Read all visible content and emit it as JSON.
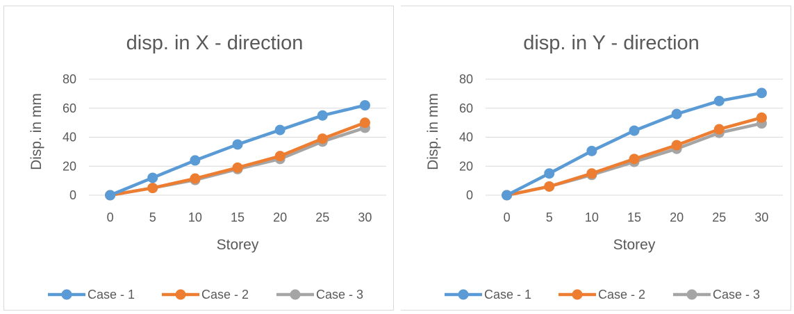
{
  "chart_data": [
    {
      "type": "line",
      "title": "disp. in X - direction",
      "xlabel": "Storey",
      "ylabel": "Disp. in mm",
      "x": [
        0,
        5,
        10,
        15,
        20,
        25,
        30
      ],
      "x_ticks": [
        "0",
        "5",
        "10",
        "15",
        "20",
        "25",
        "30"
      ],
      "y_ticks": [
        "0",
        "20",
        "40",
        "60",
        "80"
      ],
      "ylim": [
        0,
        80
      ],
      "grid": true,
      "legend_position": "bottom",
      "series": [
        {
          "name": "Case - 1",
          "color": "#5B9BD5",
          "values": [
            0,
            12,
            24,
            35,
            45,
            55,
            62
          ]
        },
        {
          "name": "Case - 2",
          "color": "#ED7D31",
          "values": [
            0,
            5,
            11.5,
            19,
            27,
            39,
            50
          ]
        },
        {
          "name": "Case - 3",
          "color": "#A5A5A5",
          "values": [
            0,
            5,
            10.5,
            18,
            25,
            37,
            46.5
          ]
        }
      ]
    },
    {
      "type": "line",
      "title": "disp. in Y - direction",
      "xlabel": "Storey",
      "ylabel": "Disp. in mm",
      "x": [
        0,
        5,
        10,
        15,
        20,
        25,
        30
      ],
      "x_ticks": [
        "0",
        "5",
        "10",
        "15",
        "20",
        "25",
        "30"
      ],
      "y_ticks": [
        "0",
        "20",
        "40",
        "60",
        "80"
      ],
      "ylim": [
        0,
        80
      ],
      "grid": true,
      "legend_position": "bottom",
      "series": [
        {
          "name": "Case - 1",
          "color": "#5B9BD5",
          "values": [
            0,
            15,
            30.5,
            44.5,
            56,
            65,
            70.5
          ]
        },
        {
          "name": "Case - 2",
          "color": "#ED7D31",
          "values": [
            0,
            6,
            15,
            25,
            34.5,
            45.5,
            53.5
          ]
        },
        {
          "name": "Case - 3",
          "color": "#A5A5A5",
          "values": [
            0,
            6,
            14,
            23,
            32,
            43,
            49.5
          ]
        }
      ]
    }
  ]
}
